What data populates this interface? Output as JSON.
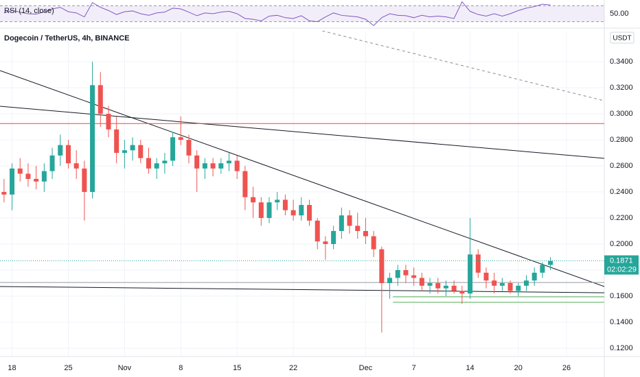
{
  "chart_data": {
    "type": "candlestick",
    "title": "Dogecoin / TetherUS, 4h, BINANCE",
    "currency": "USDT",
    "up_color": "#26a69a",
    "down_color": "#ef5350",
    "grid": true,
    "x": [
      -1,
      0,
      1,
      2,
      3,
      4,
      5,
      6,
      7,
      8,
      9,
      10,
      11,
      12,
      13,
      14,
      15,
      16,
      17,
      18,
      19,
      20,
      21,
      22,
      23,
      24,
      25,
      26,
      27,
      28,
      29,
      30,
      31,
      32,
      33,
      34,
      35,
      36,
      37,
      38,
      39,
      40,
      41,
      42,
      43,
      44,
      45,
      46,
      47,
      48,
      49,
      50,
      51,
      52,
      53,
      54,
      55,
      56,
      57,
      58,
      59,
      60,
      61,
      62,
      63,
      64,
      65,
      66,
      67
    ],
    "open": [
      0.24,
      0.238,
      0.258,
      0.254,
      0.25,
      0.248,
      0.256,
      0.268,
      0.276,
      0.262,
      0.258,
      0.24,
      0.322,
      0.3,
      0.288,
      0.27,
      0.272,
      0.276,
      0.266,
      0.258,
      0.262,
      0.264,
      0.282,
      0.28,
      0.268,
      0.258,
      0.262,
      0.258,
      0.262,
      0.264,
      0.256,
      0.236,
      0.232,
      0.22,
      0.232,
      0.234,
      0.226,
      0.222,
      0.23,
      0.218,
      0.202,
      0.2,
      0.21,
      0.222,
      0.214,
      0.21,
      0.206,
      0.196,
      0.17,
      0.174,
      0.18,
      0.176,
      0.174,
      0.168,
      0.17,
      0.166,
      0.168,
      0.164,
      0.162,
      0.192,
      0.178,
      0.172,
      0.168,
      0.17,
      0.164,
      0.168,
      0.172,
      0.178,
      0.184
    ],
    "high": [
      0.25,
      0.262,
      0.266,
      0.262,
      0.26,
      0.262,
      0.274,
      0.284,
      0.28,
      0.272,
      0.264,
      0.34,
      0.332,
      0.306,
      0.298,
      0.28,
      0.282,
      0.28,
      0.274,
      0.266,
      0.27,
      0.286,
      0.298,
      0.284,
      0.272,
      0.266,
      0.266,
      0.266,
      0.27,
      0.268,
      0.26,
      0.244,
      0.236,
      0.236,
      0.24,
      0.238,
      0.234,
      0.236,
      0.234,
      0.22,
      0.206,
      0.214,
      0.228,
      0.226,
      0.224,
      0.22,
      0.21,
      0.198,
      0.178,
      0.184,
      0.184,
      0.182,
      0.178,
      0.174,
      0.174,
      0.172,
      0.172,
      0.168,
      0.22,
      0.196,
      0.182,
      0.178,
      0.174,
      0.172,
      0.17,
      0.176,
      0.182,
      0.186,
      0.19
    ],
    "low": [
      0.232,
      0.226,
      0.248,
      0.244,
      0.242,
      0.24,
      0.25,
      0.26,
      0.258,
      0.25,
      0.218,
      0.235,
      0.29,
      0.282,
      0.262,
      0.258,
      0.264,
      0.262,
      0.254,
      0.25,
      0.254,
      0.26,
      0.276,
      0.262,
      0.24,
      0.25,
      0.252,
      0.254,
      0.256,
      0.25,
      0.226,
      0.22,
      0.214,
      0.216,
      0.226,
      0.222,
      0.218,
      0.218,
      0.214,
      0.196,
      0.188,
      0.196,
      0.204,
      0.208,
      0.204,
      0.2,
      0.19,
      0.132,
      0.158,
      0.168,
      0.17,
      0.168,
      0.164,
      0.162,
      0.162,
      0.16,
      0.162,
      0.154,
      0.158,
      0.174,
      0.166,
      0.162,
      0.164,
      0.162,
      0.16,
      0.164,
      0.168,
      0.174,
      0.18
    ],
    "close": [
      0.238,
      0.258,
      0.254,
      0.25,
      0.248,
      0.256,
      0.268,
      0.276,
      0.262,
      0.258,
      0.24,
      0.322,
      0.3,
      0.288,
      0.27,
      0.272,
      0.276,
      0.266,
      0.258,
      0.262,
      0.264,
      0.282,
      0.28,
      0.268,
      0.258,
      0.262,
      0.258,
      0.262,
      0.264,
      0.256,
      0.236,
      0.232,
      0.22,
      0.232,
      0.234,
      0.226,
      0.222,
      0.23,
      0.218,
      0.202,
      0.2,
      0.21,
      0.222,
      0.214,
      0.21,
      0.206,
      0.196,
      0.17,
      0.174,
      0.18,
      0.176,
      0.174,
      0.168,
      0.17,
      0.166,
      0.168,
      0.164,
      0.162,
      0.192,
      0.178,
      0.172,
      0.168,
      0.17,
      0.164,
      0.168,
      0.172,
      0.178,
      0.184,
      0.1871
    ],
    "xlim": [
      -1.5,
      73.7
    ],
    "ylim": [
      0.1137,
      0.3637
    ],
    "xticks": [
      {
        "value": 0,
        "label": "18"
      },
      {
        "value": 7,
        "label": "25"
      },
      {
        "value": 14,
        "label": "Nov"
      },
      {
        "value": 21,
        "label": "8"
      },
      {
        "value": 28,
        "label": "15"
      },
      {
        "value": 35,
        "label": "22"
      },
      {
        "value": 44,
        "label": "Dec"
      },
      {
        "value": 50,
        "label": "7"
      },
      {
        "value": 57,
        "label": "14"
      },
      {
        "value": 63,
        "label": "20"
      },
      {
        "value": 69,
        "label": "26"
      }
    ],
    "yticks": [
      {
        "value": 0.12,
        "label": "0.1200"
      },
      {
        "value": 0.14,
        "label": "0.1400"
      },
      {
        "value": 0.16,
        "label": "0.1600"
      },
      {
        "value": 0.18,
        "label": "0.1800"
      },
      {
        "value": 0.2,
        "label": "0.2000"
      },
      {
        "value": 0.22,
        "label": "0.2200"
      },
      {
        "value": 0.24,
        "label": "0.2400"
      },
      {
        "value": 0.26,
        "label": "0.2600"
      },
      {
        "value": 0.28,
        "label": "0.2800"
      },
      {
        "value": 0.3,
        "label": "0.3000"
      },
      {
        "value": 0.32,
        "label": "0.3200"
      },
      {
        "value": 0.34,
        "label": "0.3400"
      }
    ],
    "last_price": {
      "value": 0.1871,
      "label": "0.1871",
      "countdown": "02:02:29",
      "color": "#26a69a"
    },
    "lines": [
      {
        "color": "#131722",
        "dash": false,
        "x": [
          -1.5,
          73.7
        ],
        "values": [
          0.3332,
          0.1674
        ]
      },
      {
        "color": "#131722",
        "dash": false,
        "x": [
          -1.5,
          73.7
        ],
        "values": [
          0.3058,
          0.2658
        ]
      },
      {
        "color": "#131722",
        "dash": false,
        "x": [
          -1.5,
          73.7
        ],
        "values": [
          0.1674,
          0.1626
        ]
      },
      {
        "color": "#888888",
        "dash": true,
        "x": [
          38.6,
          73.7
        ],
        "values": [
          0.3637,
          0.31
        ]
      },
      {
        "color": "#f44336",
        "dash": false,
        "x": [
          -1.5,
          73.7
        ],
        "values": [
          0.2925,
          0.2925
        ]
      },
      {
        "color": "#9598a1",
        "dash": false,
        "x": [
          -1.5,
          73.7
        ],
        "values": [
          0.1705,
          0.1705
        ]
      },
      {
        "color": "#4caf50",
        "dash": false,
        "x": [
          47.4,
          73.7
        ],
        "values": [
          0.1595,
          0.1595
        ]
      },
      {
        "color": "#4caf50",
        "dash": false,
        "x": [
          47.4,
          73.7
        ],
        "values": [
          0.1553,
          0.1553
        ]
      }
    ],
    "rsi": {
      "name": "RSI (14, close)",
      "color": "#7e57c2",
      "ylim": [
        15.5,
        84.5
      ],
      "bands": [
        30,
        70
      ],
      "yticks": [
        {
          "value": 50,
          "label": "50.00"
        }
      ],
      "values": [
        52,
        58,
        54,
        50,
        49,
        55,
        62,
        66,
        55,
        52,
        42,
        78,
        66,
        58,
        48,
        55,
        57,
        50,
        46,
        52,
        54,
        64,
        62,
        54,
        45,
        52,
        50,
        54,
        56,
        50,
        38,
        36,
        32,
        44,
        46,
        40,
        38,
        45,
        32,
        30,
        42,
        52,
        46,
        44,
        42,
        36,
        20,
        40,
        50,
        46,
        45,
        40,
        46,
        42,
        44,
        42,
        38,
        80,
        56,
        48,
        44,
        50,
        44,
        50,
        58,
        64,
        68,
        74,
        72
      ]
    }
  }
}
